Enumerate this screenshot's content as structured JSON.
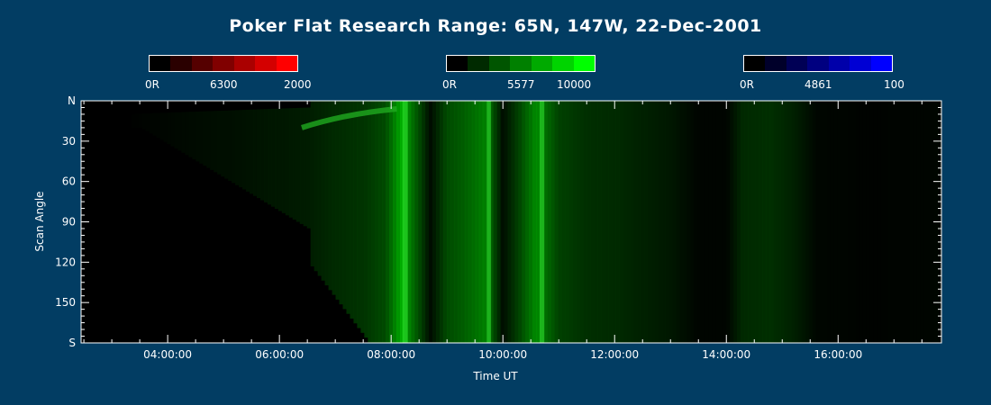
{
  "chart_data": {
    "type": "heatmap",
    "title": "Poker Flat Research Range: 65N, 147W, 22-Dec-2001",
    "xlabel": "Time UT",
    "ylabel": "Scan Angle",
    "x_ticks": [
      "04:00:00",
      "06:00:00",
      "08:00:00",
      "10:00:00",
      "12:00:00",
      "14:00:00",
      "16:00:00"
    ],
    "x_tick_hours": [
      4,
      6,
      8,
      10,
      12,
      14,
      16
    ],
    "xlim_hours": [
      2.45,
      17.85
    ],
    "y_ticks": [
      "N",
      "30",
      "60",
      "90",
      "120",
      "150",
      "S"
    ],
    "y_tick_values": [
      0,
      30,
      60,
      90,
      120,
      150,
      180
    ],
    "ylim": [
      0,
      180
    ],
    "colorbars": [
      {
        "name": "6300",
        "min_label": "0R",
        "mid_label": "6300",
        "max_label": "2000",
        "colors": [
          "#000000",
          "#2a0000",
          "#550000",
          "#800000",
          "#aa0000",
          "#d40000",
          "#ff0000"
        ]
      },
      {
        "name": "5577",
        "min_label": "0R",
        "mid_label": "5577",
        "max_label": "10000",
        "colors": [
          "#000000",
          "#002a00",
          "#005500",
          "#008000",
          "#00aa00",
          "#00d400",
          "#00ff00"
        ]
      },
      {
        "name": "4861",
        "min_label": "0R",
        "mid_label": "4861",
        "max_label": "100",
        "colors": [
          "#000000",
          "#00002a",
          "#000055",
          "#000080",
          "#0000aa",
          "#0000d4",
          "#0000ff"
        ]
      }
    ],
    "emission_5577_intensity_by_time": [
      {
        "t": 2.5,
        "v": 0.0
      },
      {
        "t": 3.2,
        "v": 0.0
      },
      {
        "t": 4.0,
        "v": 0.03
      },
      {
        "t": 5.0,
        "v": 0.06
      },
      {
        "t": 6.0,
        "v": 0.1
      },
      {
        "t": 6.5,
        "v": 0.12
      },
      {
        "t": 7.0,
        "v": 0.18
      },
      {
        "t": 7.5,
        "v": 0.22
      },
      {
        "t": 7.9,
        "v": 0.32
      },
      {
        "t": 8.2,
        "v": 0.75
      },
      {
        "t": 8.4,
        "v": 0.45
      },
      {
        "t": 8.7,
        "v": 0.05
      },
      {
        "t": 9.0,
        "v": 0.32
      },
      {
        "t": 9.3,
        "v": 0.4
      },
      {
        "t": 9.7,
        "v": 0.55
      },
      {
        "t": 10.0,
        "v": 0.05
      },
      {
        "t": 10.3,
        "v": 0.3
      },
      {
        "t": 10.6,
        "v": 0.6
      },
      {
        "t": 11.0,
        "v": 0.28
      },
      {
        "t": 11.5,
        "v": 0.2
      },
      {
        "t": 12.0,
        "v": 0.18
      },
      {
        "t": 12.5,
        "v": 0.14
      },
      {
        "t": 13.0,
        "v": 0.1
      },
      {
        "t": 13.5,
        "v": 0.02
      },
      {
        "t": 14.0,
        "v": 0.02
      },
      {
        "t": 14.3,
        "v": 0.18
      },
      {
        "t": 14.8,
        "v": 0.2
      },
      {
        "t": 15.2,
        "v": 0.14
      },
      {
        "t": 15.6,
        "v": 0.03
      },
      {
        "t": 16.5,
        "v": 0.01
      },
      {
        "t": 17.5,
        "v": 0.02
      },
      {
        "t": 17.85,
        "v": 0.03
      }
    ]
  }
}
